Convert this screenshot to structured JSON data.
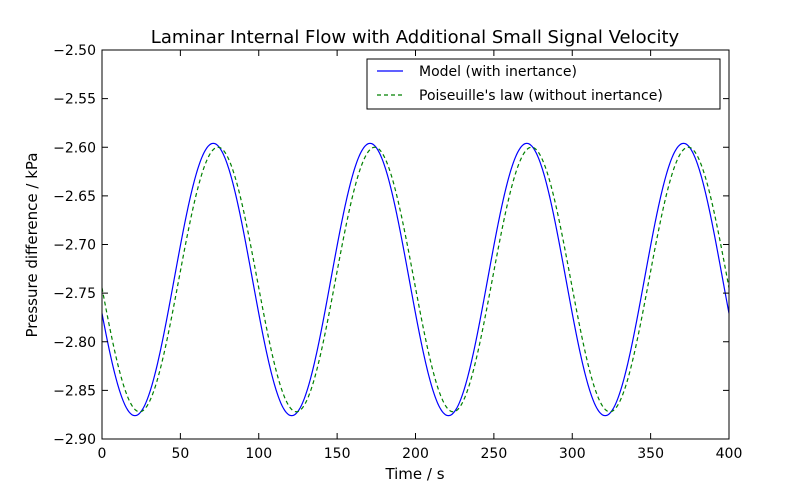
{
  "chart_data": {
    "type": "line",
    "title": "Laminar Internal Flow with Additional Small Signal Velocity",
    "xlabel": "Time / s",
    "ylabel": "Pressure difference / kPa",
    "xlim": [
      0,
      400
    ],
    "ylim": [
      -2.9,
      -2.5
    ],
    "xticks": [
      0,
      50,
      100,
      150,
      200,
      250,
      300,
      350,
      400
    ],
    "xtick_labels": [
      "0",
      "50",
      "100",
      "150",
      "200",
      "250",
      "300",
      "350",
      "400"
    ],
    "yticks": [
      -2.9,
      -2.85,
      -2.8,
      -2.75,
      -2.7,
      -2.65,
      -2.6,
      -2.55,
      -2.5
    ],
    "ytick_labels": [
      "−2.90",
      "−2.85",
      "−2.80",
      "−2.75",
      "−2.70",
      "−2.65",
      "−2.60",
      "−2.55",
      "−2.50"
    ],
    "grid": false,
    "legend_position": "top-right",
    "series": [
      {
        "name": "Model (with inertance)",
        "color": "#0000ff",
        "style": "solid",
        "period": 100,
        "mean": -2.736,
        "amplitude": 0.14,
        "first_peak_x": 71
      },
      {
        "name": "Poiseuille's law (without inertance)",
        "color": "#008000",
        "style": "dashed",
        "period": 100,
        "mean": -2.736,
        "amplitude": 0.136,
        "first_peak_x": 74
      }
    ]
  }
}
